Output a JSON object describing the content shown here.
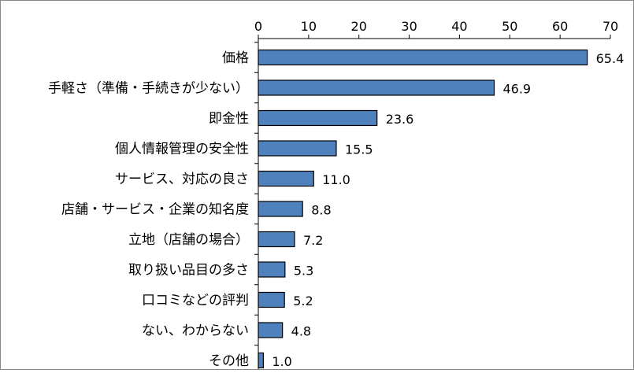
{
  "chart_data": {
    "type": "bar",
    "orientation": "horizontal",
    "title": "",
    "xlabel": "",
    "ylabel": "",
    "xlim": [
      0,
      70
    ],
    "ticks": [
      0,
      10,
      20,
      30,
      40,
      50,
      60,
      70
    ],
    "tick_labels": [
      "0",
      "10",
      "20",
      "30",
      "40",
      "50",
      "60",
      "70"
    ],
    "axis_position": "top",
    "grid": false,
    "legend": "none",
    "bar_color": "#4f81bd",
    "categories": [
      "価格",
      "手軽さ（準備・手続きが少ない）",
      "即金性",
      "個人情報管理の安全性",
      "サービス、対応の良さ",
      "店舗・サービス・企業の知名度",
      "立地（店舗の場合）",
      "取り扱い品目の多さ",
      "口コミなどの評判",
      "ない、わからない",
      "その他"
    ],
    "values": [
      65.4,
      46.9,
      23.6,
      15.5,
      11.0,
      8.8,
      7.2,
      5.3,
      5.2,
      4.8,
      1.0
    ],
    "value_labels": [
      "65.4",
      "46.9",
      "23.6",
      "15.5",
      "11.0",
      "8.8",
      "7.2",
      "5.3",
      "5.2",
      "4.8",
      "1.0"
    ]
  }
}
